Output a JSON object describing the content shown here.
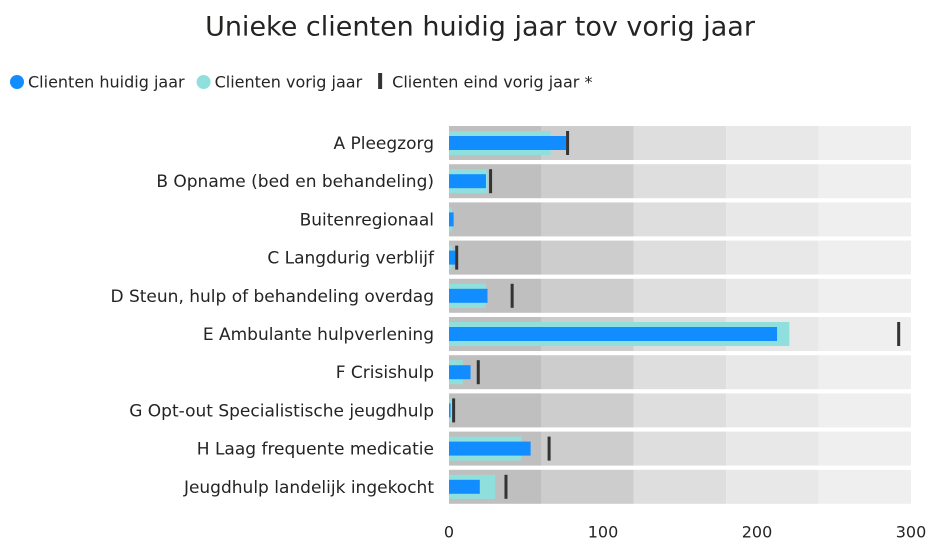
{
  "chart_data": {
    "type": "bullet",
    "title": "Unieke clienten huidig jaar tov vorig jaar",
    "categories": [
      "A Pleegzorg",
      "B Opname (bed en behandeling)",
      "Buitenregionaal",
      "C Langdurig verblijf",
      "D Steun, hulp of behandeling overdag",
      "E Ambulante hulpverlening",
      "F Crisishulp",
      "G Opt-out Specialistische jeugdhulp",
      "H Laag frequente medicatie",
      "Jeugdhulp landelijk ingekocht"
    ],
    "series": [
      {
        "name": "Clienten huidig jaar",
        "color": "#118dff",
        "values": [
          76,
          24,
          3,
          4,
          25,
          213,
          14,
          1,
          53,
          20
        ]
      },
      {
        "name": "Clienten vorig jaar",
        "color": "#8fe0dc",
        "values": [
          66,
          25,
          2,
          2,
          24,
          221,
          9,
          2,
          47,
          30
        ]
      },
      {
        "name": "Clienten eind vorig jaar *",
        "color": "#333333",
        "values": [
          77,
          27,
          null,
          5,
          41,
          292,
          19,
          3,
          65,
          37
        ]
      }
    ],
    "bands": [
      60,
      120,
      180,
      240,
      300
    ],
    "band_colors": [
      "#bfbfbf",
      "#cdcdcd",
      "#dedede",
      "#e8e8e8",
      "#efefef"
    ],
    "xlim": [
      0,
      300
    ],
    "xticks": [
      0,
      100,
      200,
      300
    ]
  }
}
